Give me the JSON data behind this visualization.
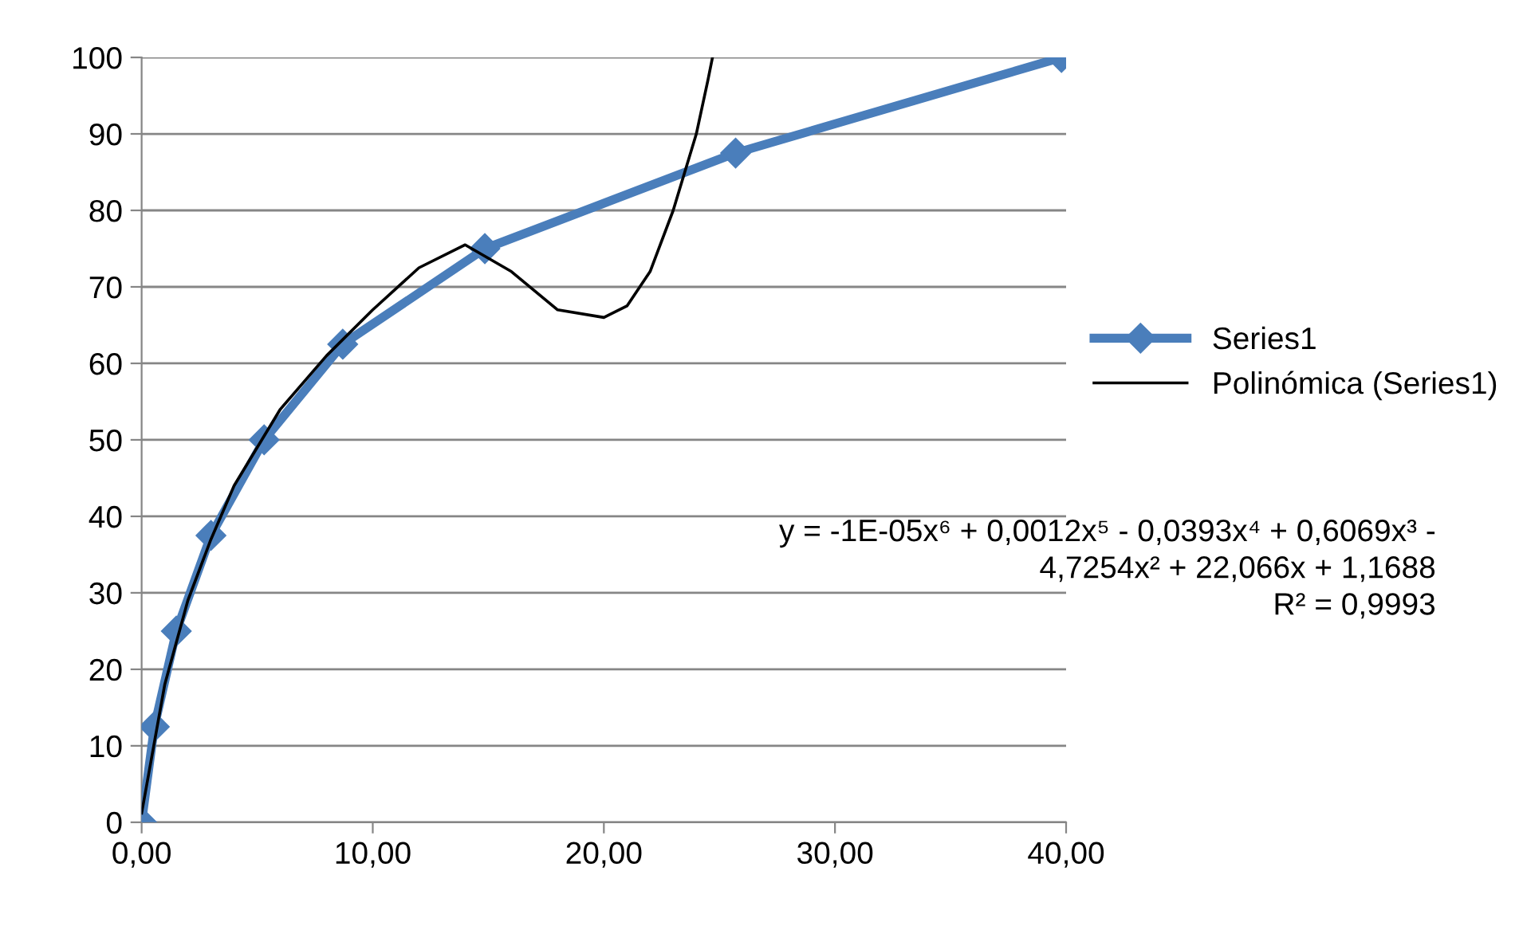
{
  "chart_data": {
    "type": "line",
    "series": [
      {
        "name": "Series1",
        "color": "#4a7ebb",
        "marker": "diamond",
        "x": [
          0,
          0.55,
          1.5,
          3.0,
          5.3,
          8.7,
          14.85,
          25.7,
          39.8
        ],
        "values": [
          0,
          12.5,
          25,
          37.5,
          50,
          62.5,
          75,
          87.5,
          100
        ]
      },
      {
        "name": "Polinómica (Series1)",
        "color": "#000000",
        "marker": "none",
        "x": [
          0,
          1,
          2,
          3,
          4,
          6,
          8,
          10,
          12,
          14,
          16,
          18,
          20,
          21,
          22,
          23,
          24,
          24.5,
          24.7
        ],
        "values": [
          1.2,
          18,
          29,
          37,
          44,
          54,
          61,
          67,
          72.5,
          75.5,
          72,
          67,
          66,
          67.5,
          72,
          80,
          90,
          97,
          100
        ]
      }
    ],
    "xlim": [
      0,
      40
    ],
    "xticks": [
      {
        "value": 0,
        "label": "0,00"
      },
      {
        "value": 10,
        "label": "10,00"
      },
      {
        "value": 20,
        "label": "20,00"
      },
      {
        "value": 30,
        "label": "30,00"
      },
      {
        "value": 40,
        "label": "40,00"
      }
    ],
    "ylim": [
      0,
      100
    ],
    "yticks": [
      0,
      10,
      20,
      30,
      40,
      50,
      60,
      70,
      80,
      90,
      100
    ],
    "grid": "y",
    "legend": "right",
    "annotations": [
      "y = -1E-05x⁶ + 0,0012x⁵ - 0,0393x⁴ + 0,6069x³ -\n4,7254x² + 22,066x + 1,1688\nR² = 0,9993"
    ]
  }
}
